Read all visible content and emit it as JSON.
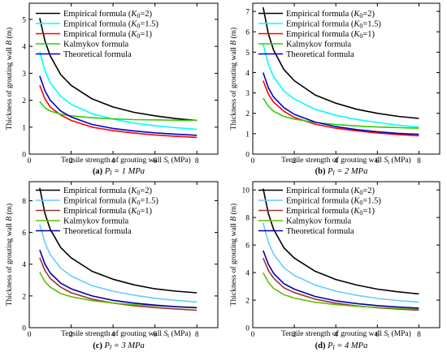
{
  "chart_data": [
    {
      "type": "line",
      "caption_tag": "(a)",
      "caption_parts": [
        {
          "t": "P"
        },
        {
          "t": "l",
          "sub": true
        },
        {
          "t": " = 1 MPa"
        }
      ],
      "xlabel_parts": [
        {
          "t": "Tensile strength of grouting wall "
        },
        {
          "t": "S",
          "i": true
        },
        {
          "t": "t",
          "sub": true
        },
        {
          "t": " (MPa)"
        }
      ],
      "ylabel_parts": [
        {
          "t": "Thickness of grouting wall "
        },
        {
          "t": "B",
          "i": true
        },
        {
          "t": " (m)"
        }
      ],
      "xlim": [
        0,
        9
      ],
      "xticks": [
        0,
        2,
        4,
        6,
        8
      ],
      "ylim": [
        0,
        5.6
      ],
      "yticks": [
        0,
        1,
        2,
        3,
        4,
        5
      ],
      "series": [
        {
          "name_parts": [
            {
              "t": "Empirical formula ("
            },
            {
              "t": "K",
              "i": true
            },
            {
              "t": "0",
              "sub": true
            },
            {
              "t": "=2)"
            }
          ],
          "color": "#000000",
          "x": [
            0.5,
            0.75,
            1,
            1.5,
            2,
            3,
            4,
            5,
            6,
            7,
            8
          ],
          "y": [
            5.05,
            4.2,
            3.65,
            2.95,
            2.55,
            2.05,
            1.75,
            1.55,
            1.42,
            1.32,
            1.25
          ]
        },
        {
          "name_parts": [
            {
              "t": "Empirical formula ("
            },
            {
              "t": "K",
              "i": true
            },
            {
              "t": "0",
              "sub": true
            },
            {
              "t": "=1.5)"
            }
          ],
          "color": "#00ffff",
          "x": [
            0.5,
            0.75,
            1,
            1.5,
            2,
            3,
            4,
            5,
            6,
            7,
            8
          ],
          "y": [
            3.8,
            3.1,
            2.65,
            2.15,
            1.85,
            1.5,
            1.3,
            1.15,
            1.05,
            0.98,
            0.92
          ]
        },
        {
          "name_parts": [
            {
              "t": "Empirical formula ("
            },
            {
              "t": "K",
              "i": true
            },
            {
              "t": "0",
              "sub": true
            },
            {
              "t": "=1)"
            }
          ],
          "color": "#ff0000",
          "x": [
            0.5,
            0.75,
            1,
            1.5,
            2,
            3,
            4,
            5,
            6,
            7,
            8
          ],
          "y": [
            2.55,
            2.05,
            1.75,
            1.45,
            1.25,
            1.0,
            0.87,
            0.78,
            0.71,
            0.66,
            0.62
          ]
        },
        {
          "name_parts": [
            {
              "t": "Kalmykov formula"
            }
          ],
          "color": "#33cc00",
          "x": [
            0.5,
            0.75,
            1,
            1.5,
            2,
            3,
            4,
            5,
            6,
            7,
            8
          ],
          "y": [
            1.95,
            1.72,
            1.6,
            1.48,
            1.42,
            1.35,
            1.31,
            1.28,
            1.27,
            1.26,
            1.25
          ]
        },
        {
          "name_parts": [
            {
              "t": "Theoretical formula"
            }
          ],
          "color": "#0000cc",
          "x": [
            0.5,
            0.75,
            1,
            1.5,
            2,
            3,
            4,
            5,
            6,
            7,
            8
          ],
          "y": [
            2.9,
            2.35,
            2.0,
            1.6,
            1.38,
            1.1,
            0.95,
            0.86,
            0.79,
            0.74,
            0.7
          ]
        }
      ]
    },
    {
      "type": "line",
      "caption_tag": "(b)",
      "caption_parts": [
        {
          "t": "P"
        },
        {
          "t": "l",
          "sub": true
        },
        {
          "t": " = 2 MPa"
        }
      ],
      "xlabel_parts": [
        {
          "t": "Tensile strength of grouting wall "
        },
        {
          "t": "S",
          "i": true
        },
        {
          "t": "t",
          "sub": true
        },
        {
          "t": " (MPa)"
        }
      ],
      "ylabel_parts": [
        {
          "t": "Thickness of grouting wall "
        },
        {
          "t": "B",
          "i": true
        },
        {
          "t": " (m)"
        }
      ],
      "xlim": [
        0,
        9
      ],
      "xticks": [
        0,
        2,
        4,
        6,
        8
      ],
      "ylim": [
        0,
        7.4
      ],
      "yticks": [
        0,
        1,
        2,
        3,
        4,
        5,
        6,
        7
      ],
      "series": [
        {
          "name_parts": [
            {
              "t": "Empirical formula ("
            },
            {
              "t": "K",
              "i": true
            },
            {
              "t": "0",
              "sub": true
            },
            {
              "t": "=2)"
            }
          ],
          "color": "#000000",
          "x": [
            0.5,
            0.75,
            1,
            1.5,
            2,
            3,
            4,
            5,
            6,
            7,
            8
          ],
          "y": [
            7.2,
            5.9,
            5.1,
            4.15,
            3.6,
            2.9,
            2.5,
            2.2,
            2.0,
            1.85,
            1.75
          ]
        },
        {
          "name_parts": [
            {
              "t": "Empirical formula ("
            },
            {
              "t": "K",
              "i": true
            },
            {
              "t": "0",
              "sub": true
            },
            {
              "t": "=1.5)"
            }
          ],
          "color": "#00ffff",
          "x": [
            0.5,
            0.75,
            1,
            1.5,
            2,
            3,
            4,
            5,
            6,
            7,
            8
          ],
          "y": [
            5.4,
            4.4,
            3.8,
            3.1,
            2.7,
            2.2,
            1.9,
            1.7,
            1.55,
            1.42,
            1.32
          ]
        },
        {
          "name_parts": [
            {
              "t": "Empirical formula ("
            },
            {
              "t": "K",
              "i": true
            },
            {
              "t": "0",
              "sub": true
            },
            {
              "t": "=1)"
            }
          ],
          "color": "#ff0000",
          "x": [
            0.5,
            0.75,
            1,
            1.5,
            2,
            3,
            4,
            5,
            6,
            7,
            8
          ],
          "y": [
            3.6,
            2.95,
            2.55,
            2.1,
            1.8,
            1.47,
            1.27,
            1.14,
            1.04,
            0.96,
            0.9
          ]
        },
        {
          "name_parts": [
            {
              "t": "Kalmykov formula"
            }
          ],
          "color": "#33cc00",
          "x": [
            0.5,
            0.75,
            1,
            1.5,
            2,
            3,
            4,
            5,
            6,
            7,
            8
          ],
          "y": [
            2.75,
            2.35,
            2.1,
            1.85,
            1.72,
            1.55,
            1.45,
            1.38,
            1.33,
            1.3,
            1.27
          ]
        },
        {
          "name_parts": [
            {
              "t": "Theoretical formula"
            }
          ],
          "color": "#0000cc",
          "x": [
            0.5,
            0.75,
            1,
            1.5,
            2,
            3,
            4,
            5,
            6,
            7,
            8
          ],
          "y": [
            4.0,
            3.25,
            2.8,
            2.28,
            1.95,
            1.57,
            1.35,
            1.2,
            1.1,
            1.02,
            0.97
          ]
        }
      ]
    },
    {
      "type": "line",
      "caption_tag": "(c)",
      "caption_parts": [
        {
          "t": "P"
        },
        {
          "t": "l",
          "sub": true
        },
        {
          "t": " = 3 MPa"
        }
      ],
      "xlabel_parts": [
        {
          "t": "Tensile strength of grouting wall "
        },
        {
          "t": "S",
          "i": true
        },
        {
          "t": "t",
          "sub": true
        },
        {
          "t": " (MPa)"
        }
      ],
      "ylabel_parts": [
        {
          "t": "Thickness of grouting wall "
        },
        {
          "t": "B",
          "i": true
        },
        {
          "t": " (m)"
        }
      ],
      "xlim": [
        0,
        9
      ],
      "xticks": [
        0,
        2,
        4,
        6,
        8
      ],
      "ylim": [
        0,
        9.2
      ],
      "yticks": [
        0,
        2,
        4,
        6,
        8
      ],
      "series": [
        {
          "name_parts": [
            {
              "t": "Empirical formula ("
            },
            {
              "t": "K",
              "i": true
            },
            {
              "t": "0",
              "sub": true
            },
            {
              "t": "=2)"
            }
          ],
          "color": "#000000",
          "x": [
            0.5,
            0.75,
            1,
            1.5,
            2,
            3,
            4,
            5,
            6,
            7,
            8
          ],
          "y": [
            8.8,
            7.2,
            6.2,
            5.05,
            4.4,
            3.55,
            3.05,
            2.7,
            2.45,
            2.3,
            2.2
          ]
        },
        {
          "name_parts": [
            {
              "t": "Empirical formula ("
            },
            {
              "t": "K",
              "i": true
            },
            {
              "t": "0",
              "sub": true
            },
            {
              "t": "=1.5)"
            }
          ],
          "color": "#66ccff",
          "x": [
            0.5,
            0.75,
            1,
            1.5,
            2,
            3,
            4,
            5,
            6,
            7,
            8
          ],
          "y": [
            6.5,
            5.35,
            4.6,
            3.75,
            3.25,
            2.65,
            2.3,
            2.05,
            1.85,
            1.72,
            1.62
          ]
        },
        {
          "name_parts": [
            {
              "t": "Empirical formula ("
            },
            {
              "t": "K",
              "i": true
            },
            {
              "t": "0",
              "sub": true
            },
            {
              "t": "=1)"
            }
          ],
          "color": "#993333",
          "x": [
            0.5,
            0.75,
            1,
            1.5,
            2,
            3,
            4,
            5,
            6,
            7,
            8
          ],
          "y": [
            4.4,
            3.6,
            3.1,
            2.55,
            2.2,
            1.8,
            1.55,
            1.38,
            1.27,
            1.18,
            1.1
          ]
        },
        {
          "name_parts": [
            {
              "t": "Kalmykov formula"
            }
          ],
          "color": "#66bb00",
          "x": [
            0.5,
            0.75,
            1,
            1.5,
            2,
            3,
            4,
            5,
            6,
            7,
            8
          ],
          "y": [
            3.5,
            2.9,
            2.55,
            2.15,
            1.95,
            1.7,
            1.55,
            1.45,
            1.38,
            1.33,
            1.28
          ]
        },
        {
          "name_parts": [
            {
              "t": "Theoretical formula"
            }
          ],
          "color": "#0000aa",
          "x": [
            0.5,
            0.75,
            1,
            1.5,
            2,
            3,
            4,
            5,
            6,
            7,
            8
          ],
          "y": [
            4.9,
            4.0,
            3.45,
            2.8,
            2.45,
            2.0,
            1.72,
            1.55,
            1.42,
            1.32,
            1.25
          ]
        }
      ]
    },
    {
      "type": "line",
      "caption_tag": "(d)",
      "caption_parts": [
        {
          "t": "P"
        },
        {
          "t": "l",
          "sub": true
        },
        {
          "t": " = 4 MPa"
        }
      ],
      "xlabel_parts": [
        {
          "t": "Tensile strength of grouting wall "
        },
        {
          "t": "S",
          "i": true
        },
        {
          "t": "t",
          "sub": true
        },
        {
          "t": " (MPa)"
        }
      ],
      "ylabel_parts": [
        {
          "t": "Thickness of grouting wall "
        },
        {
          "t": "B",
          "i": true
        },
        {
          "t": " (m)"
        }
      ],
      "xlim": [
        0,
        9
      ],
      "xticks": [
        0,
        2,
        4,
        6,
        8
      ],
      "ylim": [
        0,
        10.6
      ],
      "yticks": [
        0,
        2,
        4,
        6,
        8,
        10
      ],
      "series": [
        {
          "name_parts": [
            {
              "t": "Empirical formula ("
            },
            {
              "t": "K",
              "i": true
            },
            {
              "t": "0",
              "sub": true
            },
            {
              "t": "=2)"
            }
          ],
          "color": "#000000",
          "x": [
            0.5,
            0.75,
            1,
            1.5,
            2,
            3,
            4,
            5,
            6,
            7,
            8
          ],
          "y": [
            10.1,
            8.3,
            7.15,
            5.8,
            5.05,
            4.1,
            3.5,
            3.1,
            2.8,
            2.6,
            2.45
          ]
        },
        {
          "name_parts": [
            {
              "t": "Empirical formula ("
            },
            {
              "t": "K",
              "i": true
            },
            {
              "t": "0",
              "sub": true
            },
            {
              "t": "=1.5)"
            }
          ],
          "color": "#66ccff",
          "x": [
            0.5,
            0.75,
            1,
            1.5,
            2,
            3,
            4,
            5,
            6,
            7,
            8
          ],
          "y": [
            7.6,
            6.2,
            5.35,
            4.35,
            3.8,
            3.1,
            2.65,
            2.35,
            2.12,
            1.97,
            1.85
          ]
        },
        {
          "name_parts": [
            {
              "t": "Empirical formula ("
            },
            {
              "t": "K",
              "i": true
            },
            {
              "t": "0",
              "sub": true
            },
            {
              "t": "=1)"
            }
          ],
          "color": "#993333",
          "x": [
            0.5,
            0.75,
            1,
            1.5,
            2,
            3,
            4,
            5,
            6,
            7,
            8
          ],
          "y": [
            5.05,
            4.15,
            3.6,
            2.9,
            2.55,
            2.07,
            1.78,
            1.58,
            1.45,
            1.35,
            1.27
          ]
        },
        {
          "name_parts": [
            {
              "t": "Kalmykov formula"
            }
          ],
          "color": "#66bb00",
          "x": [
            0.5,
            0.75,
            1,
            1.5,
            2,
            3,
            4,
            5,
            6,
            7,
            8
          ],
          "y": [
            4.0,
            3.3,
            2.85,
            2.4,
            2.15,
            1.85,
            1.67,
            1.55,
            1.47,
            1.4,
            1.35
          ]
        },
        {
          "name_parts": [
            {
              "t": "Theoretical formula"
            }
          ],
          "color": "#0000aa",
          "x": [
            0.5,
            0.75,
            1,
            1.5,
            2,
            3,
            4,
            5,
            6,
            7,
            8
          ],
          "y": [
            5.6,
            4.6,
            3.95,
            3.2,
            2.8,
            2.27,
            1.95,
            1.75,
            1.6,
            1.5,
            1.42
          ]
        }
      ]
    }
  ]
}
